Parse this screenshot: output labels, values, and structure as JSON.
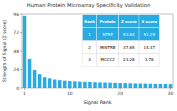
{
  "chart_data": {
    "type": "bar",
    "title": "Human Protein Microarray Specificity Validation",
    "x_label": "Signal Rank",
    "y_label": "Strength of Signal (Z score)",
    "x": [
      1,
      2,
      3,
      4,
      5,
      6,
      7,
      8,
      9,
      10,
      11,
      12,
      13,
      14,
      15,
      16,
      17,
      18,
      19,
      20,
      21,
      22,
      23,
      24,
      25,
      26,
      27,
      28,
      29,
      30
    ],
    "values": [
      93.64,
      37.65,
      23.28,
      18.0,
      14.0,
      12.5,
      11.0,
      10.2,
      9.5,
      9.0,
      8.6,
      8.3,
      8.0,
      7.8,
      7.5,
      7.3,
      7.1,
      6.9,
      6.7,
      6.5,
      6.3,
      6.1,
      5.9,
      5.8,
      5.7,
      5.5,
      5.4,
      5.3,
      5.2,
      5.1
    ],
    "color": "#29abe2",
    "xlim": [
      0.5,
      30.5
    ],
    "xticks": [
      1,
      10,
      20,
      30
    ],
    "ylim": [
      0,
      96
    ],
    "yticks": [
      0,
      24,
      48,
      72,
      96
    ],
    "table": [
      [
        "Rank",
        "Protein",
        "Z score",
        "S score"
      ],
      [
        "1",
        "NT5E",
        "93.64",
        "51.29"
      ],
      [
        "2",
        "MINTRB",
        "37.65",
        "14.37"
      ],
      [
        "3",
        "MCCC2",
        "23.28",
        "3.78"
      ]
    ]
  }
}
